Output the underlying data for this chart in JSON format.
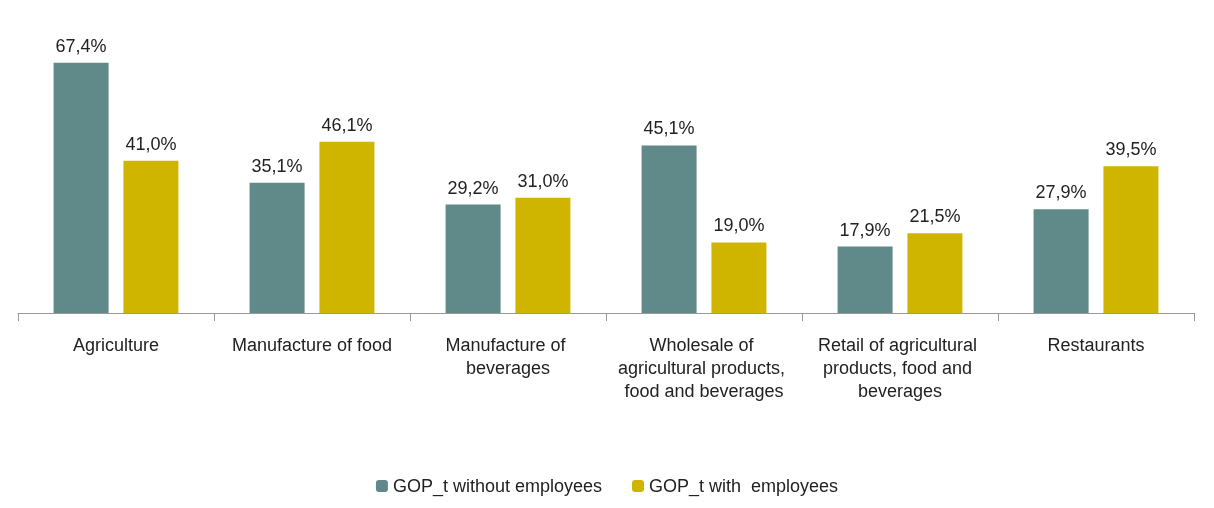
{
  "chart_data": {
    "type": "bar",
    "categories": [
      "Agriculture",
      "Manufacture of food",
      "Manufacture of beverages",
      "Wholesale of agricultural products, food and beverages",
      "Retail of agricultural products, food and beverages",
      "Restaurants"
    ],
    "series": [
      {
        "name": "GOP_t without employees",
        "color": "#5f8a89",
        "values": [
          67.4,
          35.1,
          29.2,
          45.1,
          17.9,
          27.9
        ],
        "value_labels": [
          "67,4%",
          "35,1%",
          "29,2%",
          "45,1%",
          "17,9%",
          "27,9%"
        ]
      },
      {
        "name": "GOP_t with  employees",
        "color": "#cfb500",
        "values": [
          41.0,
          46.1,
          31.0,
          19.0,
          21.5,
          39.5
        ],
        "value_labels": [
          "41,0%",
          "46,1%",
          "31,0%",
          "19,0%",
          "21,5%",
          "39,5%"
        ]
      }
    ],
    "legend": "bottom",
    "grid": false
  }
}
